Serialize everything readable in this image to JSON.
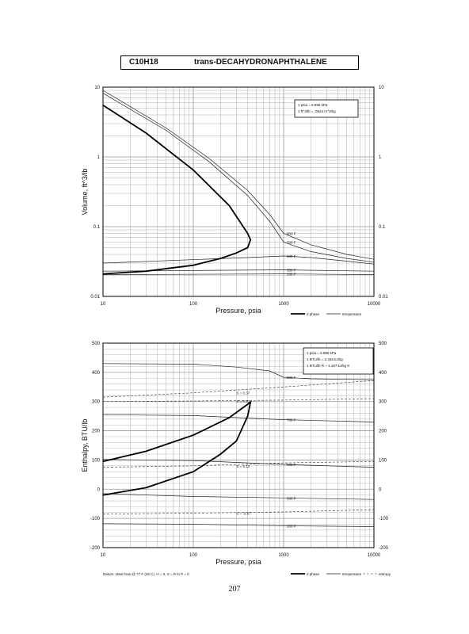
{
  "header": {
    "formula": "C10H18",
    "compound": "trans-DECAHYDRONAPHTHALENE"
  },
  "page_number": "207",
  "chart_data": [
    {
      "type": "line",
      "xlabel": "Pressure,  psia",
      "ylabel": "Volume, ft^3/lb",
      "xscale": "log",
      "yscale": "log",
      "xlim": [
        10,
        10000
      ],
      "ylim": [
        0.01,
        10
      ],
      "x_ticks": [
        "10",
        "100",
        "1000",
        "10000"
      ],
      "y_ticks": [
        "0.01",
        "0.1",
        "1",
        "10"
      ],
      "grid": true,
      "conversion_box": [
        "1 psia  =  6.895 kPa",
        "1 ft^3/lb  =  .0624 m^3/kg"
      ],
      "legend": [
        "2 phase",
        "temperature"
      ],
      "two_phase": {
        "x": [
          10,
          30,
          100,
          250,
          400,
          430,
          400,
          300,
          200,
          100,
          30,
          10
        ],
        "y": [
          5.5,
          2.2,
          0.65,
          0.2,
          0.08,
          0.065,
          0.05,
          0.042,
          0.035,
          0.028,
          0.023,
          0.021
        ]
      },
      "isotherms": [
        {
          "label": "800 F",
          "x": [
            10,
            50,
            150,
            400,
            700,
            1000,
            2000,
            5000,
            10000
          ],
          "y": [
            9,
            2.6,
            0.95,
            0.33,
            0.15,
            0.08,
            0.055,
            0.04,
            0.034
          ]
        },
        {
          "label": "700 F",
          "x": [
            10,
            50,
            150,
            400,
            700,
            1000,
            2000,
            5000,
            10000
          ],
          "y": [
            8.2,
            2.4,
            0.85,
            0.28,
            0.12,
            0.06,
            0.044,
            0.035,
            0.031
          ]
        },
        {
          "label": "600 F",
          "x": [
            10,
            400,
            1000,
            2000,
            5000,
            10000
          ],
          "y": [
            0.03,
            0.036,
            0.038,
            0.036,
            0.032,
            0.029
          ]
        },
        {
          "label": "300 F",
          "x": [
            10,
            1000,
            10000
          ],
          "y": [
            0.023,
            0.024,
            0.023
          ]
        },
        {
          "label": "100 F",
          "x": [
            10,
            1000,
            10000
          ],
          "y": [
            0.0205,
            0.021,
            0.0205
          ]
        }
      ]
    },
    {
      "type": "line",
      "xlabel": "Pressure,  psia",
      "ylabel": "Enthalpy, BTU/lb",
      "xscale": "log",
      "xlim": [
        10,
        10000
      ],
      "ylim": [
        -200,
        500
      ],
      "x_ticks": [
        "10",
        "100",
        "1000",
        "10000"
      ],
      "y_ticks": [
        "-200",
        "-100",
        "0",
        "100",
        "200",
        "300",
        "400",
        "500"
      ],
      "grid": true,
      "conversion_box": [
        "1 psia  =  6.895 kPa",
        "1 BTU/lb  =  2.326 kJ/kg",
        "1 BTU/lb R  =  4.187 kJ/kg K"
      ],
      "legend": [
        "2 phase",
        "temperature",
        "entropy"
      ],
      "datum_note": "Datum: Ideal Gas @ 77 F (25 C),  H = 0,  S = R ln P = 0",
      "two_phase": {
        "x": [
          10,
          30,
          100,
          250,
          430,
          400,
          300,
          200,
          100,
          30,
          10
        ],
        "y": [
          95,
          130,
          185,
          245,
          298,
          250,
          165,
          120,
          60,
          5,
          -20
        ]
      },
      "isotherms": [
        {
          "label": "800 F",
          "x": [
            10,
            100,
            300,
            700,
            1000,
            2000,
            5000,
            10000
          ],
          "y": [
            430,
            428,
            418,
            405,
            383,
            378,
            376,
            375
          ]
        },
        {
          "label": "700 F",
          "x": [
            10,
            100,
            1000,
            10000
          ],
          "y": [
            255,
            252,
            238,
            230
          ]
        },
        {
          "label": "500 F",
          "x": [
            10,
            100,
            1000,
            10000
          ],
          "y": [
            102,
            98,
            85,
            75
          ]
        },
        {
          "label": "300 F",
          "x": [
            10,
            100,
            1000,
            10000
          ],
          "y": [
            -15,
            -25,
            -30,
            -35
          ]
        },
        {
          "label": "100 F",
          "x": [
            10,
            100,
            1000,
            10000
          ],
          "y": [
            -118,
            -120,
            -125,
            -128
          ]
        }
      ],
      "isentropes": [
        {
          "label": "S = 0.37",
          "x": [
            10,
            100,
            1000,
            10000
          ],
          "y": [
            315,
            330,
            350,
            372
          ]
        },
        {
          "label": "S = 0.31",
          "x": [
            10,
            100,
            1000,
            10000
          ],
          "y": [
            300,
            302,
            305,
            310
          ]
        },
        {
          "label": "S = 0.12",
          "x": [
            10,
            100,
            1000,
            10000
          ],
          "y": [
            75,
            80,
            90,
            95
          ]
        },
        {
          "label": "S = -0.07",
          "x": [
            10,
            100,
            1000,
            10000
          ],
          "y": [
            -85,
            -82,
            -78,
            -70
          ]
        }
      ]
    }
  ]
}
